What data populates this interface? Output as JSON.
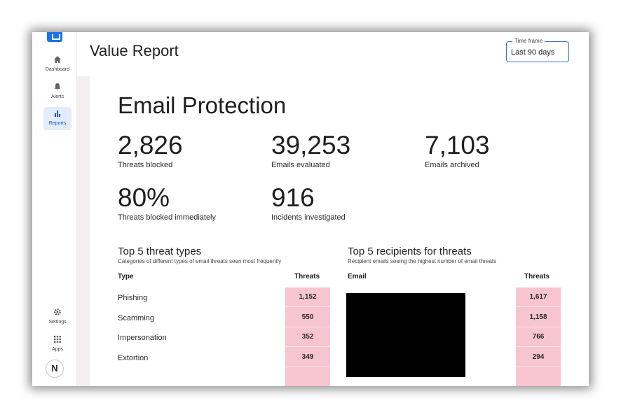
{
  "sidebar": {
    "items": [
      {
        "label": "Dashboard",
        "icon": "home-icon"
      },
      {
        "label": "Alerts",
        "icon": "bell-icon"
      },
      {
        "label": "Reports",
        "icon": "bar-chart-icon"
      }
    ],
    "bottom_items": [
      {
        "label": "Settings",
        "icon": "gear-icon"
      },
      {
        "label": "Apps",
        "icon": "apps-grid-icon"
      }
    ],
    "avatar_initial": "N",
    "active": "Reports",
    "accent_color": "#1a73e8"
  },
  "header": {
    "title": "Value Report",
    "timeframe_label": "Time frame",
    "timeframe_value": "Last 90 days"
  },
  "section": {
    "title": "Email Protection",
    "metrics": [
      {
        "value": "2,826",
        "label": "Threats blocked"
      },
      {
        "value": "39,253",
        "label": "Emails evaluated"
      },
      {
        "value": "7,103",
        "label": "Emails archived"
      },
      {
        "value": "80%",
        "label": "Threats blocked immediately"
      },
      {
        "value": "916",
        "label": "Incidents investigated"
      }
    ]
  },
  "threat_types": {
    "title": "Top 5 threat types",
    "subtitle": "Categories of different types of email threats seen most frequently",
    "col_type": "Type",
    "col_threats": "Threats",
    "rows": [
      {
        "type": "Phishing",
        "threats": "1,152"
      },
      {
        "type": "Scamming",
        "threats": "550"
      },
      {
        "type": "Impersonation",
        "threats": "352"
      },
      {
        "type": "Extortion",
        "threats": "349"
      }
    ]
  },
  "recipients": {
    "title": "Top 5 recipients for threats",
    "subtitle": "Recipient emails seeing the highest number of email threats",
    "col_email": "Email",
    "col_threats": "Threats",
    "rows": [
      {
        "threats": "1,617"
      },
      {
        "threats": "1,158"
      },
      {
        "threats": "766"
      },
      {
        "threats": "294"
      }
    ]
  },
  "colors": {
    "threat_cell": "#f7c5cf"
  }
}
